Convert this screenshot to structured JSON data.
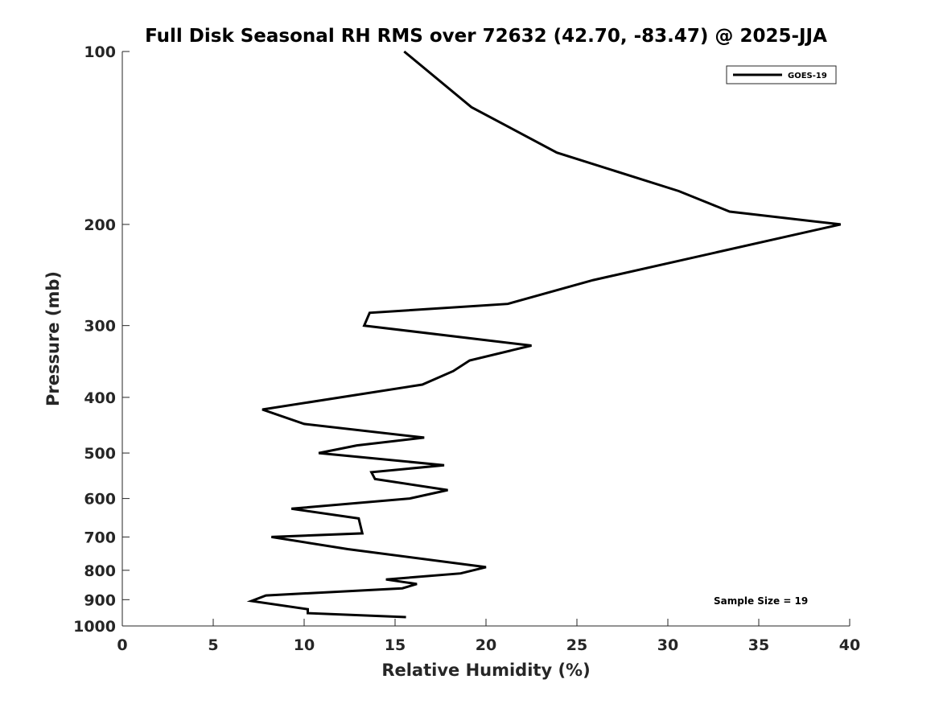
{
  "chart_data": {
    "type": "line",
    "title": "Full Disk Seasonal RH RMS over 72632 (42.70, -83.47) @ 2025-JJA",
    "xlabel": "Relative Humidity (%)",
    "ylabel": "Pressure (mb)",
    "xlim": [
      0,
      40
    ],
    "ylim": [
      100,
      1000
    ],
    "y_scale": "log",
    "y_reversed": true,
    "grid": false,
    "x_ticks": [
      "0",
      "5",
      "10",
      "15",
      "20",
      "25",
      "30",
      "35",
      "40"
    ],
    "y_ticks": [
      "100",
      "200",
      "300",
      "400",
      "500",
      "600",
      "700",
      "800",
      "900",
      "1000"
    ],
    "legend_position": "top-right",
    "series": [
      {
        "name": "GOES-19",
        "color": "#000000",
        "points": [
          [
            15.5,
            100
          ],
          [
            19.2,
            125
          ],
          [
            23.9,
            150
          ],
          [
            30.6,
            175
          ],
          [
            33.4,
            190
          ],
          [
            39.5,
            200
          ],
          [
            25.9,
            250
          ],
          [
            21.2,
            275
          ],
          [
            13.6,
            285
          ],
          [
            13.3,
            300
          ],
          [
            22.5,
            325
          ],
          [
            19.1,
            345
          ],
          [
            18.2,
            360
          ],
          [
            16.5,
            380
          ],
          [
            7.7,
            420
          ],
          [
            10.0,
            445
          ],
          [
            16.6,
            470
          ],
          [
            12.9,
            485
          ],
          [
            10.8,
            500
          ],
          [
            17.7,
            525
          ],
          [
            13.7,
            540
          ],
          [
            13.9,
            555
          ],
          [
            17.9,
            580
          ],
          [
            15.8,
            600
          ],
          [
            9.3,
            625
          ],
          [
            13.0,
            650
          ],
          [
            13.2,
            690
          ],
          [
            8.2,
            700
          ],
          [
            12.4,
            735
          ],
          [
            20.0,
            790
          ],
          [
            18.6,
            810
          ],
          [
            14.5,
            830
          ],
          [
            16.2,
            845
          ],
          [
            15.4,
            860
          ],
          [
            7.9,
            885
          ],
          [
            7.1,
            905
          ],
          [
            10.2,
            935
          ],
          [
            10.2,
            950
          ],
          [
            15.6,
            965
          ]
        ]
      }
    ],
    "annotation": "Sample Size = 19"
  }
}
